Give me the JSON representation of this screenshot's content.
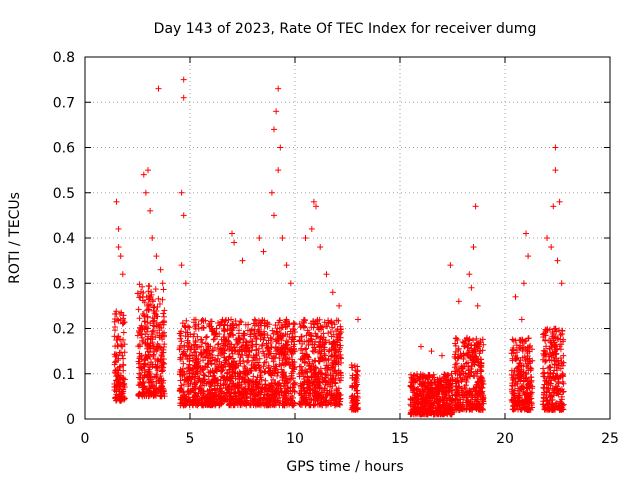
{
  "chart_data": {
    "type": "scatter",
    "title": "Day 143 of 2023, Rate Of TEC Index for receiver dumg",
    "xlabel": "GPS time / hours",
    "ylabel": "ROTI / TECUs",
    "xlim": [
      0,
      25
    ],
    "ylim": [
      0,
      0.8
    ],
    "xticks": [
      0,
      5,
      10,
      15,
      20,
      25
    ],
    "yticks": [
      0,
      0.1,
      0.2,
      0.3,
      0.4,
      0.5,
      0.6,
      0.7,
      0.8
    ],
    "xtick_labels": [
      "0",
      "5",
      "10",
      "15",
      "20",
      "25"
    ],
    "ytick_labels": [
      "0",
      "0.1",
      "0.2",
      "0.3",
      "0.4",
      "0.5",
      "0.6",
      "0.7",
      "0.8"
    ],
    "grid": true,
    "marker": "+",
    "color": "#ff0000",
    "clusters": [
      {
        "x": [
          1.4,
          1.9
        ],
        "y": [
          0.04,
          0.24
        ]
      },
      {
        "x": [
          2.5,
          3.8
        ],
        "y": [
          0.05,
          0.3
        ]
      },
      {
        "x": [
          4.5,
          10.0
        ],
        "y": [
          0.03,
          0.22
        ]
      },
      {
        "x": [
          10.2,
          12.2
        ],
        "y": [
          0.03,
          0.22
        ]
      },
      {
        "x": [
          12.7,
          13.0
        ],
        "y": [
          0.02,
          0.12
        ]
      },
      {
        "x": [
          15.5,
          17.5
        ],
        "y": [
          0.01,
          0.1
        ]
      },
      {
        "x": [
          17.6,
          19.0
        ],
        "y": [
          0.02,
          0.18
        ]
      },
      {
        "x": [
          20.3,
          21.3
        ],
        "y": [
          0.02,
          0.18
        ]
      },
      {
        "x": [
          21.8,
          22.8
        ],
        "y": [
          0.02,
          0.2
        ]
      }
    ],
    "points": [
      [
        1.5,
        0.48
      ],
      [
        1.6,
        0.42
      ],
      [
        1.7,
        0.36
      ],
      [
        1.8,
        0.32
      ],
      [
        1.6,
        0.38
      ],
      [
        2.8,
        0.54
      ],
      [
        3.0,
        0.55
      ],
      [
        2.9,
        0.5
      ],
      [
        3.2,
        0.4
      ],
      [
        3.1,
        0.46
      ],
      [
        3.5,
        0.73
      ],
      [
        3.4,
        0.36
      ],
      [
        3.6,
        0.33
      ],
      [
        3.7,
        0.3
      ],
      [
        4.7,
        0.75
      ],
      [
        4.7,
        0.71
      ],
      [
        4.6,
        0.5
      ],
      [
        4.7,
        0.45
      ],
      [
        4.6,
        0.34
      ],
      [
        4.8,
        0.3
      ],
      [
        7.0,
        0.41
      ],
      [
        7.1,
        0.39
      ],
      [
        7.5,
        0.35
      ],
      [
        8.3,
        0.4
      ],
      [
        8.5,
        0.37
      ],
      [
        9.0,
        0.64
      ],
      [
        9.2,
        0.73
      ],
      [
        9.1,
        0.68
      ],
      [
        9.3,
        0.6
      ],
      [
        9.2,
        0.55
      ],
      [
        8.9,
        0.5
      ],
      [
        9.0,
        0.45
      ],
      [
        9.4,
        0.4
      ],
      [
        9.6,
        0.34
      ],
      [
        9.8,
        0.3
      ],
      [
        10.9,
        0.48
      ],
      [
        11.0,
        0.47
      ],
      [
        10.8,
        0.42
      ],
      [
        11.2,
        0.38
      ],
      [
        10.5,
        0.4
      ],
      [
        11.5,
        0.32
      ],
      [
        11.8,
        0.28
      ],
      [
        12.1,
        0.25
      ],
      [
        13.0,
        0.22
      ],
      [
        16.0,
        0.16
      ],
      [
        16.5,
        0.15
      ],
      [
        17.0,
        0.14
      ],
      [
        17.4,
        0.34
      ],
      [
        17.8,
        0.26
      ],
      [
        18.3,
        0.32
      ],
      [
        18.5,
        0.38
      ],
      [
        18.6,
        0.47
      ],
      [
        18.4,
        0.29
      ],
      [
        18.7,
        0.25
      ],
      [
        20.5,
        0.27
      ],
      [
        20.8,
        0.22
      ],
      [
        21.0,
        0.41
      ],
      [
        21.1,
        0.36
      ],
      [
        20.9,
        0.3
      ],
      [
        22.0,
        0.4
      ],
      [
        22.2,
        0.38
      ],
      [
        22.3,
        0.47
      ],
      [
        22.4,
        0.55
      ],
      [
        22.4,
        0.6
      ],
      [
        22.6,
        0.48
      ],
      [
        22.5,
        0.35
      ],
      [
        22.7,
        0.3
      ]
    ]
  }
}
